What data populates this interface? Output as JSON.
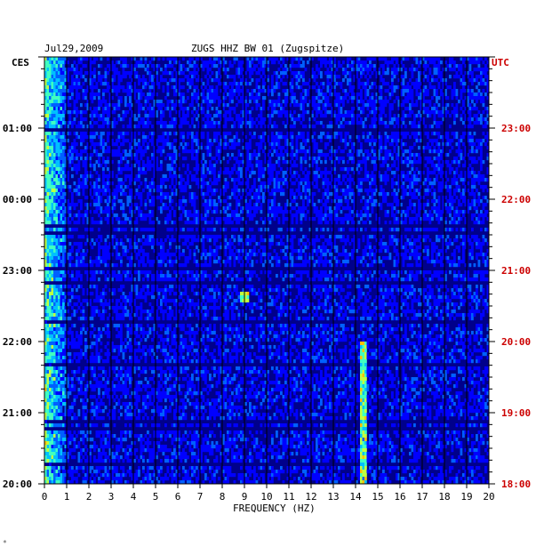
{
  "header": {
    "date": "Jul29,2009",
    "station": "ZUGS HHZ BW 01 (Zugspitze)"
  },
  "axes": {
    "left_zone": "CES",
    "right_zone": "UTC",
    "xlabel": "FREQUENCY (HZ)"
  },
  "corner_mark": "*",
  "colors": {
    "background": "#00008b",
    "right_time_labels": "#cc0000"
  },
  "chart_data": {
    "type": "heatmap",
    "title": "ZUGS HHZ BW 01 (Zugspitze)",
    "date": "Jul29,2009",
    "xlabel": "FREQUENCY (HZ)",
    "xlim": [
      0,
      20
    ],
    "x_ticks": [
      "0",
      "1",
      "2",
      "3",
      "4",
      "5",
      "6",
      "7",
      "8",
      "9",
      "10",
      "11",
      "12",
      "13",
      "14",
      "15",
      "16",
      "17",
      "18",
      "19",
      "20"
    ],
    "left_time_labels": [
      "01:00",
      "00:00",
      "23:00",
      "22:00",
      "21:00",
      "20:00"
    ],
    "right_time_labels": [
      "23:00",
      "22:00",
      "21:00",
      "20:00",
      "19:00",
      "18:00"
    ],
    "time_rows_per_hour": 20,
    "colormap": [
      "#00008b",
      "#0000ff",
      "#0060ff",
      "#00c0ff",
      "#40ffc0",
      "#c0ff40",
      "#ffc000",
      "#ff2000"
    ],
    "features": [
      {
        "desc": "strong low-frequency energy",
        "freq_hz": [
          0,
          1
        ],
        "level": "high"
      },
      {
        "desc": "narrow spectral line",
        "freq_hz": 14.3,
        "time_utc": [
          "18:00",
          "20:00"
        ],
        "level": "high"
      },
      {
        "desc": "transient burst",
        "freq_hz": 8.9,
        "time_utc": "20:45",
        "level": "high"
      }
    ]
  }
}
